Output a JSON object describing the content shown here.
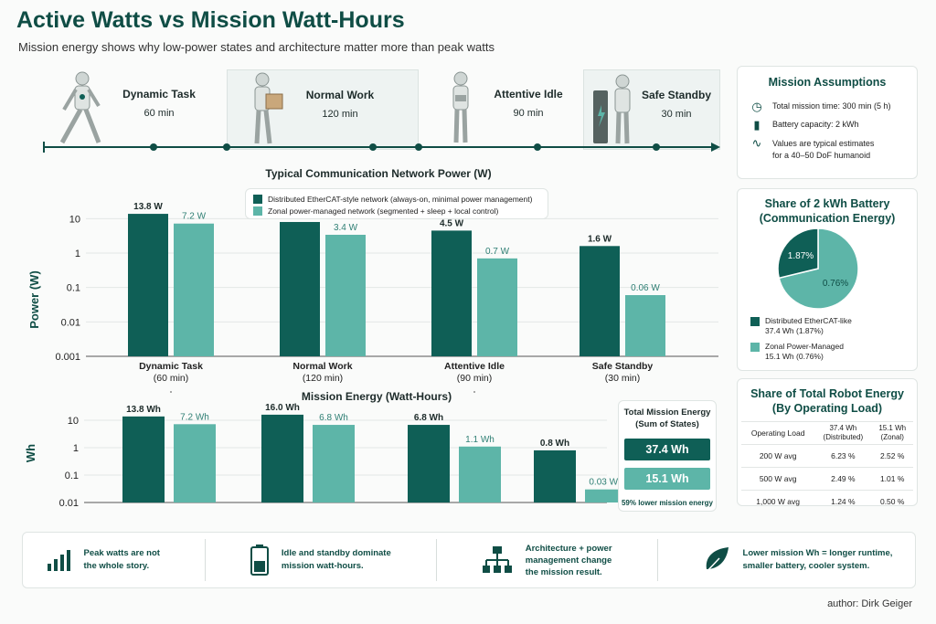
{
  "title": "Active Watts vs Mission Watt-Hours",
  "subtitle": "Mission energy shows why low-power states and architecture matter more than peak watts",
  "timeline": [
    {
      "label": "Dynamic Task",
      "duration": "60 min"
    },
    {
      "label": "Normal Work",
      "duration": "120 min"
    },
    {
      "label": "Attentive Idle",
      "duration": "90 min"
    },
    {
      "label": "Safe Standby",
      "duration": "30 min"
    }
  ],
  "assumptions": {
    "title": "Mission Assumptions",
    "items": [
      {
        "icon": "clock-icon",
        "text": "Total mission time: 300 min (5 h)"
      },
      {
        "icon": "battery-icon",
        "text": "Battery capacity: 2 kWh"
      },
      {
        "icon": "waveform-icon",
        "text_line1": "Values are typical estimates",
        "text_line2": "for a 40–50 DoF humanoid"
      }
    ]
  },
  "battery_share": {
    "title_line1": "Share of 2 kWh Battery",
    "title_line2": "(Communication Energy)",
    "legend": [
      {
        "line1": "Distributed EtherCAT-like",
        "line2": "37.4 Wh (1.87%)",
        "color": "#0f5f56"
      },
      {
        "line1": "Zonal Power-Managed",
        "line2": "15.1 Wh (0.76%)",
        "color": "#5db5a8"
      }
    ]
  },
  "robot_share": {
    "title_line1": "Share of Total Robot Energy",
    "title_line2": "(By Operating Load)",
    "headers": [
      "Operating Load",
      "37.4 Wh\n(Distributed)",
      "15.1 Wh\n(Zonal)"
    ],
    "rows": [
      [
        "200 W avg",
        "6.23 %",
        "2.52 %"
      ],
      [
        "500 W avg",
        "2.49 %",
        "1.01 %"
      ],
      [
        "1,000 W avg",
        "1.24 %",
        "0.50 %"
      ]
    ]
  },
  "total_mission": {
    "title_line1": "Total Mission Energy",
    "title_line2": "(Sum of States)",
    "distributed": "37.4 Wh",
    "zonal": "15.1 Wh",
    "note": "59% lower mission energy"
  },
  "footer": [
    {
      "icon": "bar-chart-icon",
      "line1": "Peak watts are not",
      "line2": "the whole story."
    },
    {
      "icon": "battery-icon",
      "line1": "Idle and standby dominate",
      "line2": "mission watt-hours."
    },
    {
      "icon": "network-icon",
      "line1": "Architecture + power",
      "line2": "management change",
      "line3": "the mission result."
    },
    {
      "icon": "leaf-icon",
      "line1": "Lower mission Wh = longer runtime,",
      "line2": "smaller battery, cooler system."
    }
  ],
  "author": "author: Dirk Geiger",
  "colors": {
    "distributed": "#0f5f56",
    "zonal": "#5db5a8",
    "accent": "#0f4d45"
  },
  "chart_data": [
    {
      "type": "bar",
      "title": "Typical Communication Network Power (W)",
      "ylabel": "Power (W)",
      "yscale": "log",
      "ylim": [
        0.001,
        20
      ],
      "yticks": [
        "10",
        "1",
        "0.1",
        "0.01",
        "0.001"
      ],
      "categories": [
        "Dynamic Task\n(60 min)",
        "Normal Work\n(120 min)",
        "Attentive Idle\n(90 min)",
        "Safe Standby\n(30 min)"
      ],
      "series": [
        {
          "name": "Distributed EtherCAT-style network (always-on, minimal power management)",
          "values": [
            13.8,
            8.0,
            4.5,
            1.6
          ],
          "labels": [
            "13.8 W",
            "8.0 W",
            "4.5 W",
            "1.6 W"
          ]
        },
        {
          "name": "Zonal power-managed network (segmented + sleep + local control)",
          "values": [
            7.2,
            3.4,
            0.7,
            0.06
          ],
          "labels": [
            "7.2 W",
            "3.4 W",
            "0.7 W",
            "0.06 W"
          ]
        }
      ],
      "legend": "top-center"
    },
    {
      "type": "bar",
      "title": "Mission Energy (Watt-Hours)",
      "ylabel": "Wh",
      "yscale": "log",
      "ylim": [
        0.01,
        20
      ],
      "yticks": [
        "10",
        "1",
        "0.1",
        "0.01"
      ],
      "series": [
        {
          "values": [
            13.8,
            16.0,
            6.8,
            0.8
          ],
          "labels": [
            "13.8 Wh",
            "16.0 Wh",
            "6.8 Wh",
            "0.8 Wh"
          ]
        },
        {
          "values": [
            7.2,
            6.8,
            1.1,
            0.03
          ],
          "labels": [
            "7.2 Wh",
            "6.8 Wh",
            "1.1 Wh",
            "0.03 Wh"
          ]
        }
      ]
    },
    {
      "type": "pie",
      "slices": [
        {
          "label": "1.87%",
          "value": 37.4
        },
        {
          "label": "0.76%",
          "value": 15.1
        }
      ]
    }
  ]
}
